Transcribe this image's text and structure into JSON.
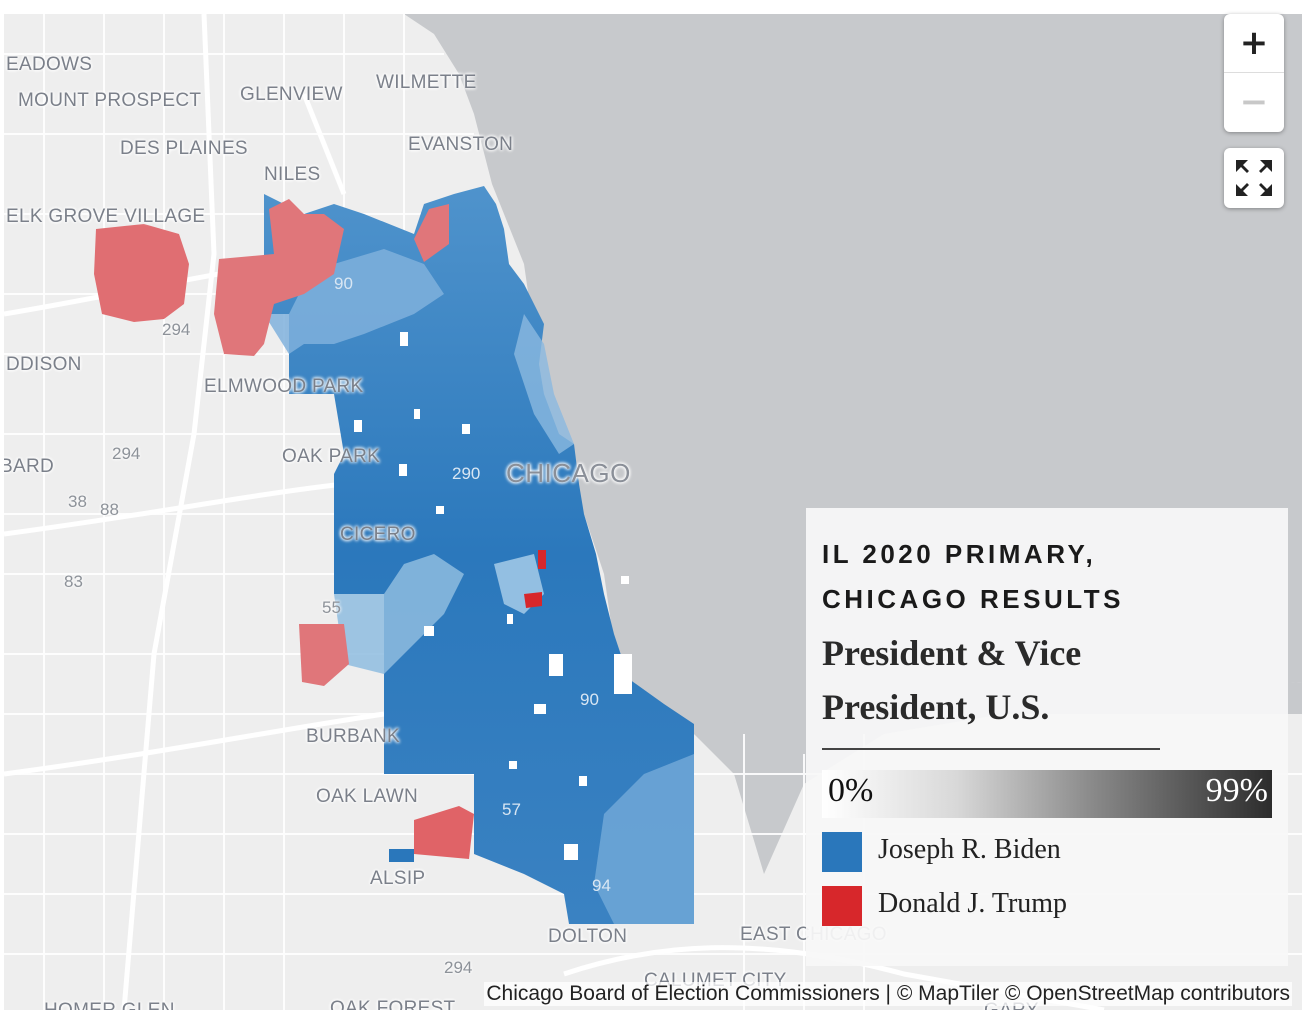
{
  "map": {
    "places": [
      "EADOWS",
      "MOUNT PROSPECT",
      "GLENVIEW",
      "WILMETTE",
      "DES PLAINES",
      "EVANSTON",
      "NILES",
      "ELK GROVE VILLAGE",
      "DDISON",
      "ELMWOOD PARK",
      "BARD",
      "OAK PARK",
      "CHICAGO",
      "CICERO",
      "BURBANK",
      "OAK LAWN",
      "ALSIP",
      "DOLTON",
      "EAST CHICAGO",
      "CALUMET CITY",
      "HOMER GLEN",
      "OAK FOREST",
      "GARY"
    ],
    "highways": [
      "90",
      "294",
      "294",
      "290",
      "38",
      "88",
      "83",
      "55",
      "90",
      "57",
      "94",
      "294"
    ]
  },
  "controls": {
    "zoom_in": "+",
    "zoom_out": "−"
  },
  "legend": {
    "kicker_line1": "IL 2020 PRIMARY,",
    "kicker_line2": "CHICAGO RESULTS",
    "race_line1": "President & Vice",
    "race_line2": "President, U.S.",
    "scale_min": "0%",
    "scale_max": "99%",
    "candidates": [
      {
        "name": "Joseph R. Biden",
        "color": "#2a77bb"
      },
      {
        "name": "Donald J. Trump",
        "color": "#d7272b"
      }
    ]
  },
  "attribution": "Chicago Board of Election Commissioners | © MapTiler © OpenStreetMap contributors",
  "colors": {
    "land": "#eeeeee",
    "water": "#c7c9cc",
    "roads": "#ffffff",
    "biden_dark": "#2a77bb",
    "biden_light": "#8fb9de",
    "trump": "#e06a6e"
  }
}
